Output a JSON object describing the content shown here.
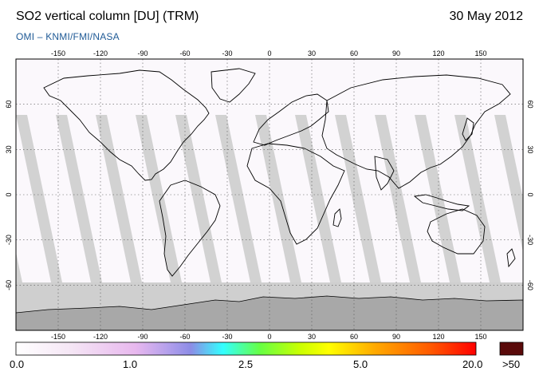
{
  "header": {
    "title": "SO2 vertical column [DU] (TRM)",
    "date": "30 May 2012",
    "credit": "OMI  –  KNMI/FMI/NASA"
  },
  "map": {
    "projection": "equirectangular",
    "lon_ticks": [
      -150,
      -120,
      -90,
      -60,
      -30,
      0,
      30,
      60,
      90,
      120,
      150
    ],
    "lat_ticks": [
      60,
      30,
      0,
      -30,
      -60
    ],
    "lon_range": [
      -180,
      180
    ],
    "lat_range": [
      -90,
      90
    ],
    "gridlines": "dotted",
    "no_data_color": "#cfcfcf",
    "land_shade_color": "#a9a9a9",
    "background_color": "#fbf8fc"
  },
  "colorbar": {
    "labels": [
      "0.0",
      "1.0",
      "2.5",
      "5.0",
      "20.0",
      ">50"
    ],
    "colors": [
      "#ffffff",
      "#f2dcf2",
      "#d9a8e8",
      "#8c8ce6",
      "#33ffff",
      "#66ff33",
      "#ffff00",
      "#ff9900",
      "#ff0000"
    ],
    "overflow_color": "#5a0a0a"
  }
}
